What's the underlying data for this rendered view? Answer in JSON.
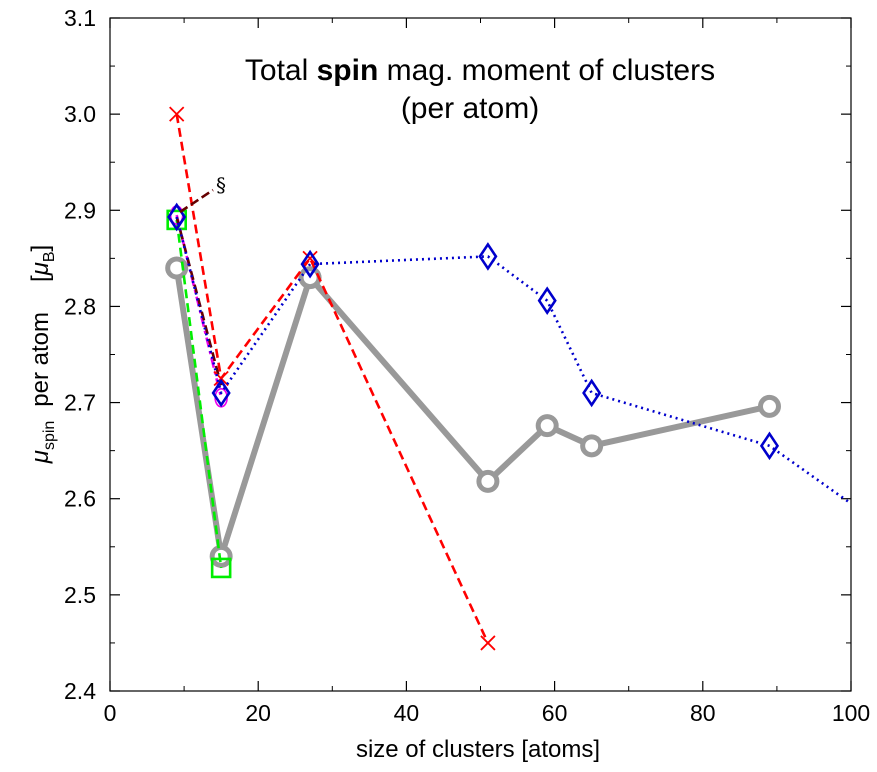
{
  "chart_data": {
    "type": "line",
    "title": {
      "line1_pre": "Total ",
      "line1_bold": "spin",
      "line1_post": " mag. moment of clusters",
      "line2": "(per atom)"
    },
    "xlabel": "size of clusters   [atoms]",
    "ylabel": {
      "mu": "μ",
      "spin_sub": "spin",
      "per_atom": "per atom",
      "bracket_open": "[",
      "mu_b": "μ",
      "b_sub": "B",
      "bracket_close": "]"
    },
    "xlim": [
      0,
      100
    ],
    "ylim": [
      2.4,
      3.1
    ],
    "xticks": [
      0,
      20,
      40,
      60,
      80,
      100
    ],
    "yticks": [
      2.4,
      2.5,
      2.6,
      2.7,
      2.8,
      2.9,
      3.0,
      3.1
    ],
    "xtick_labels": [
      "0",
      "20",
      "40",
      "60",
      "80",
      "100"
    ],
    "ytick_labels": [
      "2.4",
      "2.5",
      "2.6",
      "2.7",
      "2.8",
      "2.9",
      "3.0",
      "3.1"
    ],
    "grid": false,
    "annotation": {
      "text": "§"
    },
    "series": [
      {
        "color": "#ff0000",
        "line": "dashed",
        "marker": "x",
        "points": [
          [
            9,
            3.0
          ],
          [
            15,
            2.725
          ],
          [
            27,
            2.85
          ],
          [
            51,
            2.45
          ]
        ]
      },
      {
        "color": "#0000cc",
        "line": "dotted",
        "marker": "diamond",
        "points": [
          [
            9,
            2.893
          ],
          [
            15,
            2.71
          ],
          [
            27,
            2.844
          ],
          [
            51,
            2.852
          ],
          [
            59,
            2.806
          ],
          [
            65,
            2.71
          ],
          [
            89,
            2.655
          ],
          [
            100,
            2.595
          ]
        ]
      },
      {
        "color": "#999999",
        "line": "solid",
        "marker": "circle",
        "points": [
          [
            9,
            2.84
          ],
          [
            15,
            2.54
          ],
          [
            27,
            2.83
          ],
          [
            51,
            2.618
          ],
          [
            59,
            2.676
          ],
          [
            65,
            2.655
          ],
          [
            89,
            2.696
          ]
        ]
      },
      {
        "color": "#00ee00",
        "line": "dashed",
        "marker": "square",
        "points": [
          [
            9,
            2.89
          ],
          [
            15,
            2.528
          ]
        ]
      },
      {
        "color": "#ee00ee",
        "line": "dashdot",
        "marker": "circle-small",
        "points": [
          [
            9,
            2.895
          ],
          [
            15,
            2.705
          ]
        ]
      },
      {
        "color": "#660000",
        "line": "dashed",
        "marker": "none",
        "points": [
          [
            9,
            2.893
          ],
          [
            15,
            2.718
          ]
        ]
      }
    ]
  }
}
